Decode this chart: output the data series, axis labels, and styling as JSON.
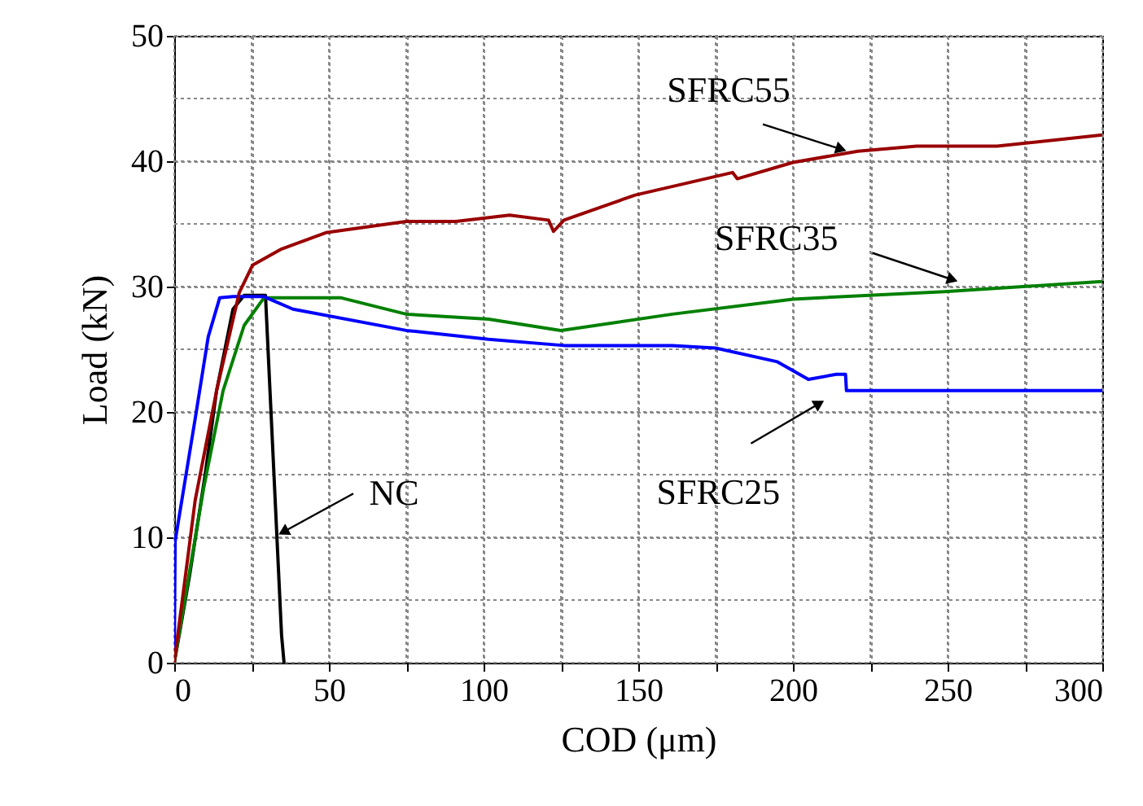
{
  "chart_data": {
    "type": "line",
    "xlabel": "COD (μm)",
    "ylabel": "Load (kN)",
    "xlim": [
      0,
      300
    ],
    "ylim": [
      0,
      50
    ],
    "xticks": [
      0,
      {
        "value": 25,
        "label": null
      },
      50,
      {
        "value": 75,
        "label": null
      },
      100,
      {
        "value": 125,
        "label": null
      },
      150,
      {
        "value": 175,
        "label": null
      },
      200,
      {
        "value": 225,
        "label": null
      },
      250,
      {
        "value": 275,
        "label": null
      },
      300
    ],
    "yticks": [
      0,
      {
        "value": 5,
        "label": null
      },
      10,
      {
        "value": 15,
        "label": null
      },
      20,
      {
        "value": 25,
        "label": null
      },
      30,
      {
        "value": 35,
        "label": null
      },
      40,
      {
        "value": 45,
        "label": null
      },
      50
    ],
    "grid": true,
    "marker": "none",
    "line_style": "solid",
    "series": [
      {
        "color": "#000000",
        "x": [
          0,
          1.6,
          5,
          10,
          13.7,
          19,
          22.6,
          29.5,
          34.7,
          35.5
        ],
        "values": [
          0,
          2.2,
          7,
          15,
          21.7,
          28.2,
          29.3,
          29.3,
          2.2,
          0
        ]
      },
      {
        "color": "#008000",
        "x": [
          0,
          9.5,
          15.8,
          22.6,
          29,
          54,
          75,
          101.6,
          125,
          161,
          200,
          249,
          300
        ],
        "values": [
          0,
          13.9,
          21.7,
          26.9,
          29.1,
          29.1,
          27.8,
          27.4,
          26.5,
          27.8,
          29.0,
          29.6,
          30.4
        ]
      },
      {
        "color": "#0000ff",
        "x": [
          0,
          0.3,
          6.8,
          11,
          14.7,
          19,
          29,
          38.4,
          75,
          101.6,
          126,
          161,
          175,
          195,
          205,
          214,
          217,
          217.3,
          300
        ],
        "values": [
          0,
          9.7,
          19.5,
          26,
          29.1,
          29.2,
          29.2,
          28.2,
          26.5,
          25.8,
          25.3,
          25.3,
          25.1,
          24.0,
          22.6,
          23.0,
          23.0,
          21.7,
          21.7
        ]
      },
      {
        "color": "#990000",
        "x": [
          0,
          6.8,
          13.7,
          21,
          25.3,
          34.7,
          49,
          75,
          91,
          108.4,
          121,
          122.6,
          126,
          149,
          180.5,
          182,
          200,
          221,
          240,
          266,
          300
        ],
        "values": [
          0,
          13,
          21.7,
          29.5,
          31.7,
          33,
          34.3,
          35.2,
          35.2,
          35.7,
          35.3,
          34.4,
          35.3,
          37.3,
          39.1,
          38.6,
          39.9,
          40.8,
          41.2,
          41.2,
          42.1
        ]
      }
    ],
    "annotations": [
      {
        "text": "SFRC55",
        "x": 215,
        "y": 41.0
      },
      {
        "text": "SFRC35",
        "x": 251,
        "y": 30.6
      },
      {
        "text": "SFRC25",
        "x": 208,
        "y": 20.6
      },
      {
        "text": "NC",
        "x": 35.8,
        "y": 10.5
      }
    ]
  }
}
